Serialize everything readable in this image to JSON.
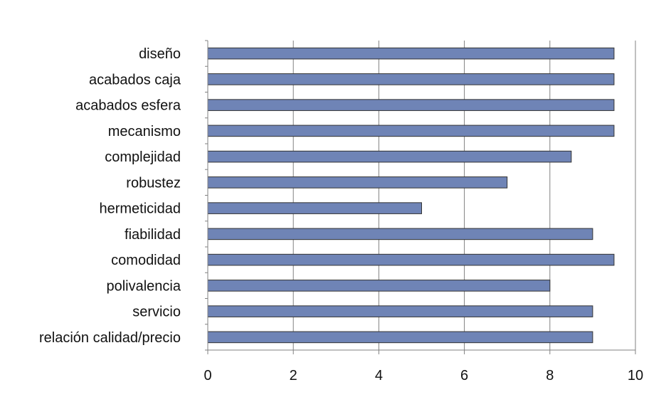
{
  "chart_data": {
    "type": "bar",
    "orientation": "horizontal",
    "categories": [
      "diseño",
      "acabados caja",
      "acabados esfera",
      "mecanismo",
      "complejidad",
      "robustez",
      "hermeticidad",
      "fiabilidad",
      "comodidad",
      "polivalencia",
      "servicio",
      "relación calidad/precio"
    ],
    "values": [
      9.5,
      9.5,
      9.5,
      9.5,
      8.5,
      7,
      5,
      9,
      9.5,
      8,
      9,
      9
    ],
    "xlim": [
      0,
      10
    ],
    "xticks": [
      "0",
      "2",
      "4",
      "6",
      "8",
      "10"
    ],
    "title": "",
    "xlabel": "",
    "ylabel": "",
    "grid": "vertical",
    "bar_color": "#6f84b6",
    "bar_edge_color": "#333333",
    "grid_color": "#808080"
  }
}
